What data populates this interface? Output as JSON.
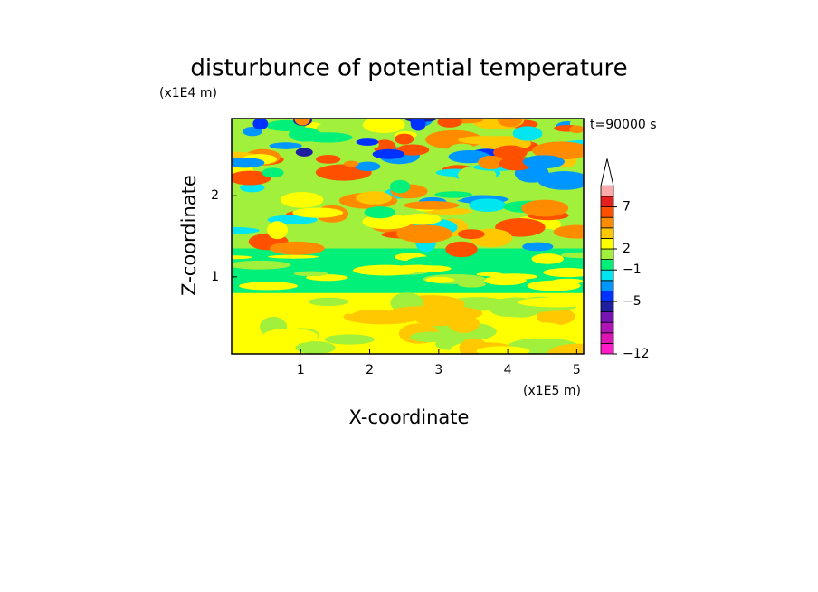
{
  "chart_data": {
    "type": "contour",
    "title": "disturbunce of potential temperature",
    "xlabel": "X-coordinate",
    "ylabel": "Z-coordinate",
    "xunit": "(x1E5 m)",
    "yunit": "(x1E4 m)",
    "annotation": "t=90000 s",
    "xlim": [
      0,
      5.1
    ],
    "xticks": [
      1,
      2,
      3,
      4,
      5
    ],
    "ylim": [
      0.05,
      2.95
    ],
    "yticks": [
      1,
      2
    ],
    "colorbar": {
      "levels": [
        -12,
        -10,
        -8,
        -7,
        -6,
        -5,
        -3,
        -2,
        -1,
        1,
        2,
        3,
        4,
        5,
        7,
        9,
        11
      ],
      "colors": [
        "#ff1cc8",
        "#dc14b4",
        "#b014b4",
        "#7814b4",
        "#1e1ea0",
        "#0032ff",
        "#0096ff",
        "#00e6f0",
        "#00f07a",
        "#a0f03c",
        "#ffff00",
        "#ffc800",
        "#ff8c00",
        "#ff5000",
        "#e61e1e",
        "#ffaaaa"
      ],
      "ticks": [
        {
          "value": -12,
          "label": "−12"
        },
        {
          "value": -5,
          "label": "−5"
        },
        {
          "value": -1,
          "label": "−1"
        },
        2,
        7
      ]
    }
  }
}
